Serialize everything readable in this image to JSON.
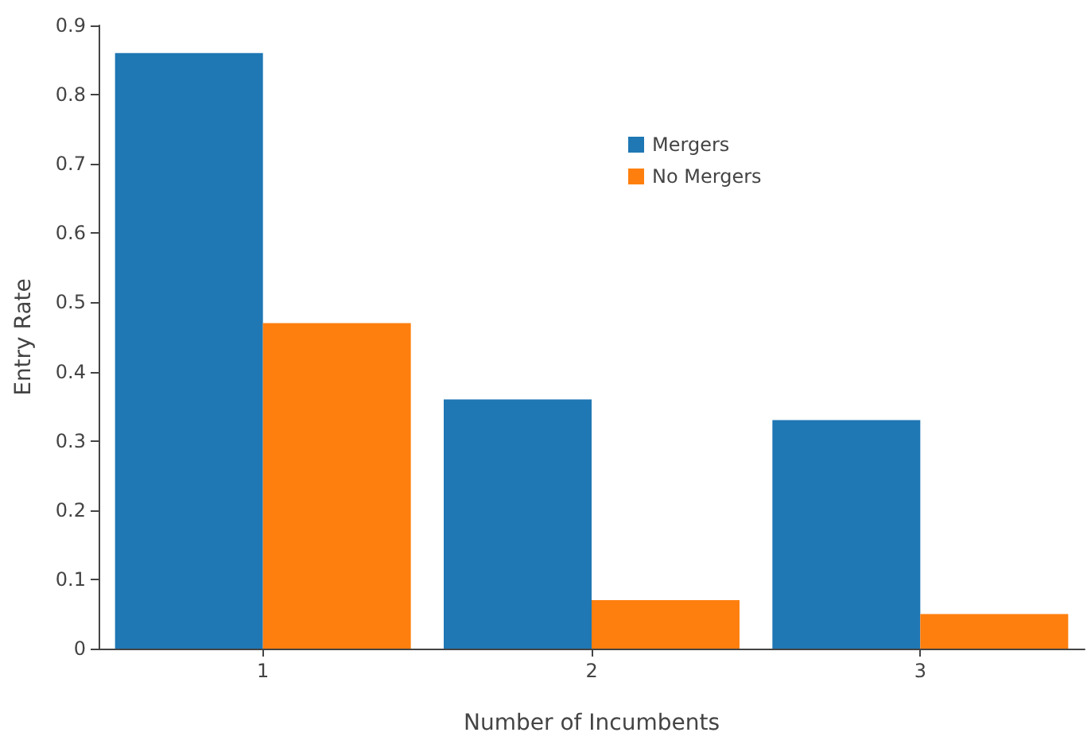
{
  "chart_data": {
    "type": "bar",
    "xlabel": "Number of Incumbents",
    "ylabel": "Entry Rate",
    "categories": [
      "1",
      "2",
      "3"
    ],
    "series": [
      {
        "name": "Mergers",
        "color": "#1f77b4",
        "values": [
          0.86,
          0.36,
          0.33
        ]
      },
      {
        "name": "No Mergers",
        "color": "#ff7f0e",
        "values": [
          0.47,
          0.07,
          0.05
        ]
      }
    ],
    "ylim": [
      0,
      0.9
    ],
    "yticks": [
      0,
      0.1,
      0.2,
      0.3,
      0.4,
      0.5,
      0.6,
      0.7,
      0.8,
      0.9
    ],
    "grid": false,
    "legend": "top right"
  }
}
